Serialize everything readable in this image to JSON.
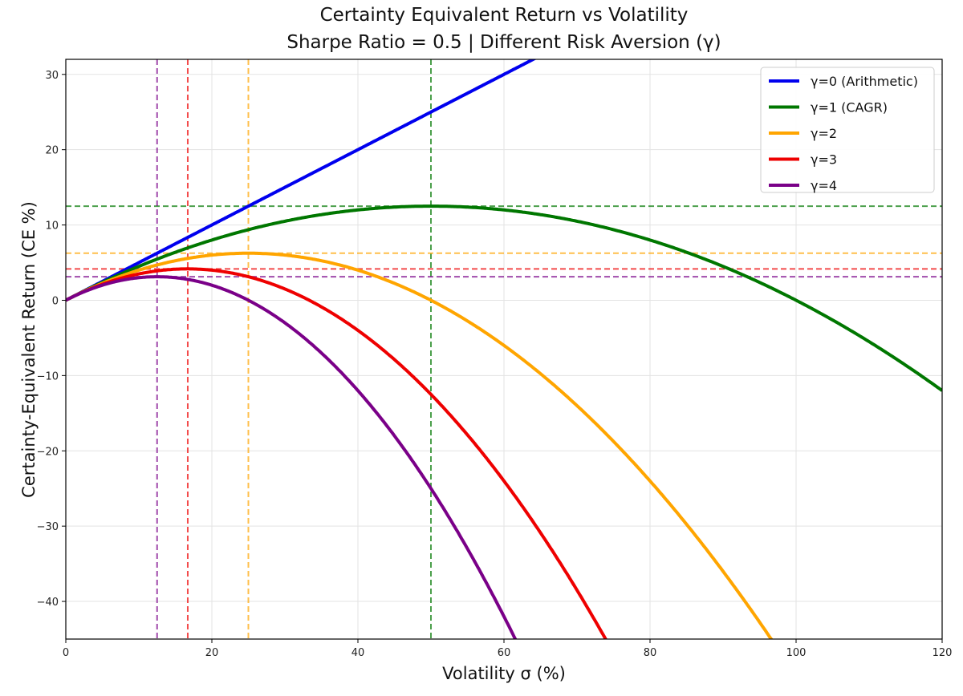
{
  "chart_data": {
    "type": "line",
    "title": "Certainty Equivalent Return vs Volatility",
    "subtitle": "Sharpe Ratio = 0.5 | Different Risk Aversion (γ)",
    "xlabel": "Volatility σ (%)",
    "ylabel": "Certainty-Equivalent Return (CE %)",
    "xlim": [
      0,
      120
    ],
    "ylim": [
      -45,
      32
    ],
    "xticks": [
      0,
      20,
      40,
      60,
      80,
      100,
      120
    ],
    "yticks": [
      -40,
      -30,
      -20,
      -10,
      0,
      10,
      20,
      30
    ],
    "grid": true,
    "legend_position": "top-right",
    "sharpe_ratio": 0.5,
    "series": [
      {
        "name": "γ=0 (Arithmetic)",
        "gamma": 0,
        "color": "#0000ee",
        "optimal_sigma": null,
        "max_ce": null,
        "points": [
          [
            0,
            0
          ],
          [
            10,
            5
          ],
          [
            20,
            10
          ],
          [
            30,
            15
          ],
          [
            40,
            20
          ],
          [
            50,
            25
          ],
          [
            60,
            30
          ],
          [
            64,
            32
          ]
        ]
      },
      {
        "name": "γ=1 (CAGR)",
        "gamma": 1,
        "color": "#007700",
        "optimal_sigma": 50,
        "max_ce": 12.5,
        "points": [
          [
            0,
            0
          ],
          [
            10,
            4.5
          ],
          [
            20,
            8
          ],
          [
            30,
            10.5
          ],
          [
            40,
            12
          ],
          [
            50,
            12.5
          ],
          [
            60,
            12
          ],
          [
            70,
            10.5
          ],
          [
            80,
            8
          ],
          [
            90,
            4.5
          ],
          [
            100,
            0
          ],
          [
            110,
            -5.5
          ],
          [
            120,
            -12
          ]
        ]
      },
      {
        "name": "γ=2",
        "gamma": 2,
        "color": "#ffa500",
        "optimal_sigma": 25,
        "max_ce": 6.25,
        "points": [
          [
            0,
            0
          ],
          [
            10,
            4
          ],
          [
            20,
            6
          ],
          [
            25,
            6.25
          ],
          [
            30,
            6
          ],
          [
            40,
            4
          ],
          [
            50,
            0
          ],
          [
            60,
            -6
          ],
          [
            70,
            -14
          ],
          [
            80,
            -24
          ],
          [
            90,
            -36
          ],
          [
            96.6,
            -45
          ]
        ]
      },
      {
        "name": "γ=3",
        "gamma": 3,
        "color": "#ee0000",
        "optimal_sigma": 16.7,
        "max_ce": 4.17,
        "points": [
          [
            0,
            0
          ],
          [
            5,
            2.125
          ],
          [
            10,
            3.5
          ],
          [
            16.7,
            4.17
          ],
          [
            20,
            4
          ],
          [
            30,
            1.5
          ],
          [
            40,
            -4
          ],
          [
            50,
            -12.5
          ],
          [
            60,
            -24
          ],
          [
            70,
            -38.5
          ],
          [
            74.1,
            -45
          ]
        ]
      },
      {
        "name": "γ=4",
        "gamma": 4,
        "color": "#7a0088",
        "optimal_sigma": 12.5,
        "max_ce": 3.125,
        "points": [
          [
            0,
            0
          ],
          [
            5,
            2
          ],
          [
            10,
            3
          ],
          [
            12.5,
            3.125
          ],
          [
            20,
            2
          ],
          [
            30,
            -3
          ],
          [
            40,
            -12
          ],
          [
            50,
            -25
          ],
          [
            60,
            -42
          ],
          [
            61.6,
            -45
          ]
        ]
      }
    ]
  }
}
